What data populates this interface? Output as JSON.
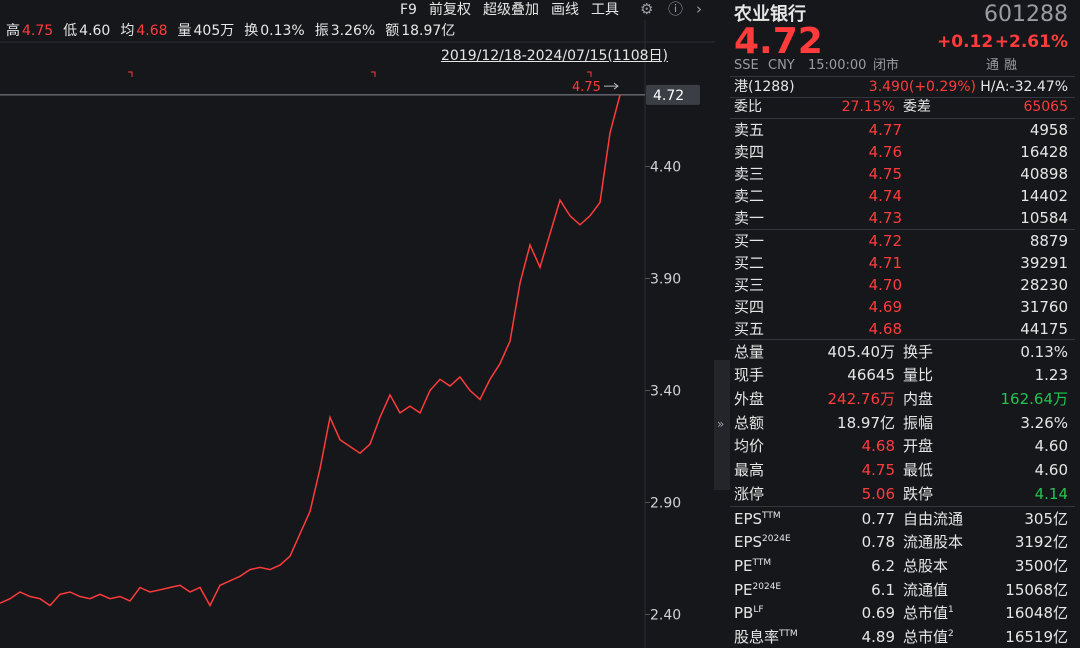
{
  "header": {
    "stats": [
      {
        "label": "高",
        "value": "4.75"
      },
      {
        "label": "低",
        "value": "4.60"
      },
      {
        "label": "均",
        "value": "4.68"
      },
      {
        "label": "量",
        "value": "405万"
      },
      {
        "label": "换",
        "value": "0.13%"
      },
      {
        "label": "振",
        "value": "3.26%"
      },
      {
        "label": "额",
        "value": "18.97亿"
      }
    ],
    "toolbar": [
      "F9",
      "前复权",
      "超级叠加",
      "画线",
      "工具"
    ],
    "date_range": "2019/12/18-2024/07/15(1108日)"
  },
  "chart": {
    "type": "line",
    "values": [
      2.45,
      2.47,
      2.5,
      2.48,
      2.47,
      2.44,
      2.49,
      2.5,
      2.48,
      2.47,
      2.49,
      2.47,
      2.48,
      2.46,
      2.52,
      2.5,
      2.51,
      2.52,
      2.53,
      2.5,
      2.52,
      2.44,
      2.53,
      2.55,
      2.57,
      2.6,
      2.61,
      2.6,
      2.62,
      2.66,
      2.76,
      2.86,
      3.05,
      3.28,
      3.18,
      3.15,
      3.12,
      3.16,
      3.28,
      3.38,
      3.3,
      3.33,
      3.3,
      3.4,
      3.45,
      3.42,
      3.46,
      3.4,
      3.36,
      3.45,
      3.52,
      3.62,
      3.88,
      4.05,
      3.95,
      4.1,
      4.25,
      4.18,
      4.14,
      4.18,
      4.24,
      4.55,
      4.72
    ],
    "ylim": [
      2.25,
      4.84
    ],
    "yticks": [
      {
        "value": 4.4,
        "label": "4.40"
      },
      {
        "value": 3.9,
        "label": "3.90"
      },
      {
        "value": 3.4,
        "label": "3.40"
      },
      {
        "value": 2.9,
        "label": "2.90"
      },
      {
        "value": 2.4,
        "label": "2.40"
      }
    ],
    "last_price": {
      "value": 4.72,
      "label": "4.72"
    },
    "high_marker": {
      "value": 4.75,
      "label": "4.75"
    },
    "color": "#ff3b3b"
  },
  "quote": {
    "name": "农业银行",
    "code": "601288",
    "price": "4.72",
    "change": "+0.12",
    "change_pct": "+2.61%",
    "exchange": "SSE",
    "currency": "CNY",
    "time": "15:00:00",
    "status": "闭市",
    "badges": [
      "通",
      "融"
    ],
    "hk": {
      "label": "港(1288)",
      "price": "3.490(+0.29%)",
      "ratio": "H/A:-32.47%"
    },
    "order_ratio": {
      "label": "委比",
      "value": "27.15%",
      "diff_label": "委差",
      "diff": "65065"
    }
  },
  "asks": [
    {
      "label": "卖五",
      "price": "4.77",
      "volume": "4958"
    },
    {
      "label": "卖四",
      "price": "4.76",
      "volume": "16428"
    },
    {
      "label": "卖三",
      "price": "4.75",
      "volume": "40898"
    },
    {
      "label": "卖二",
      "price": "4.74",
      "volume": "14402"
    },
    {
      "label": "卖一",
      "price": "4.73",
      "volume": "10584"
    }
  ],
  "bids": [
    {
      "label": "买一",
      "price": "4.72",
      "volume": "8879"
    },
    {
      "label": "买二",
      "price": "4.71",
      "volume": "39291"
    },
    {
      "label": "买三",
      "price": "4.70",
      "volume": "28230"
    },
    {
      "label": "买四",
      "price": "4.69",
      "volume": "31760"
    },
    {
      "label": "买五",
      "price": "4.68",
      "volume": "44175"
    }
  ],
  "stats": [
    [
      "总量",
      "405.40万",
      "换手",
      "0.13%"
    ],
    [
      "现手",
      "46645",
      "量比",
      "1.23"
    ],
    [
      "外盘",
      "242.76万",
      "内盘",
      "162.64万"
    ],
    [
      "总额",
      "18.97亿",
      "振幅",
      "3.26%"
    ],
    [
      "均价",
      "4.68",
      "开盘",
      "4.60"
    ],
    [
      "最高",
      "4.75",
      "最低",
      "4.60"
    ],
    [
      "涨停",
      "5.06",
      "跌停",
      "4.14"
    ]
  ],
  "fundamentals": [
    {
      "label": "EPS",
      "sup": "TTM",
      "value": "0.77",
      "label2": "自由流通",
      "value2": "305亿"
    },
    {
      "label": "EPS",
      "sup": "2024E",
      "value": "0.78",
      "label2": "流通股本",
      "value2": "3192亿"
    },
    {
      "label": "PE",
      "sup": "TTM",
      "value": "6.2",
      "label2": "总股本",
      "value2": "3500亿"
    },
    {
      "label": "PE",
      "sup": "2024E",
      "value": "6.1",
      "label2": "流通值",
      "value2": "15068亿"
    },
    {
      "label": "PB",
      "sup": "LF",
      "value": "0.69",
      "label2": "总市值",
      "sup2": "1",
      "value2": "16048亿"
    },
    {
      "label": "股息率",
      "sup": "TTM",
      "value": "4.89",
      "label2": "总市值",
      "sup2": "2",
      "value2": "16519亿"
    }
  ]
}
